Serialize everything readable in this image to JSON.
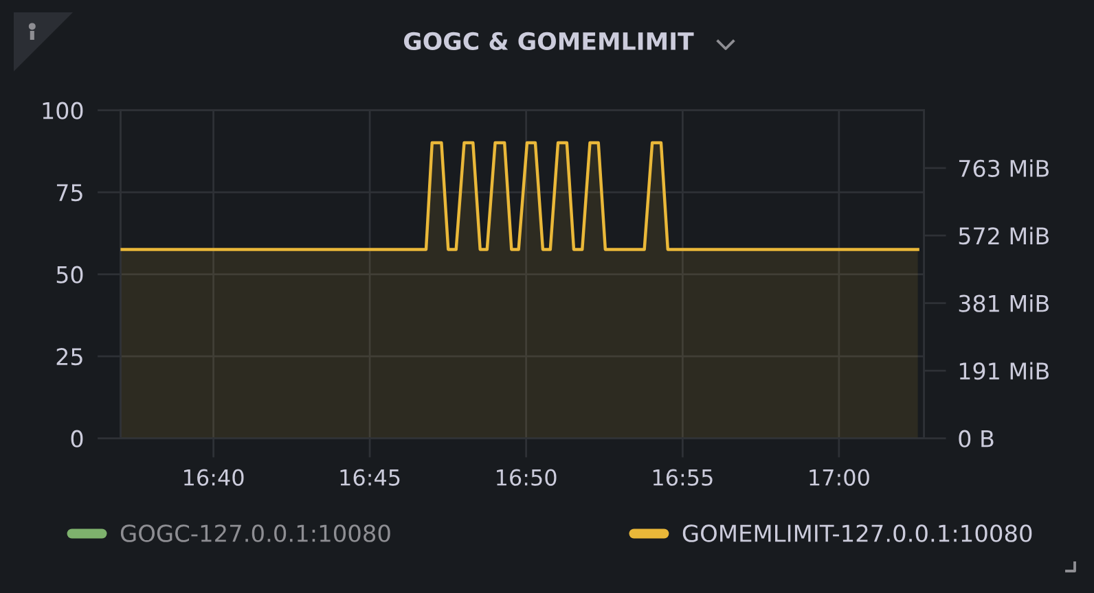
{
  "chart_data": {
    "type": "area",
    "title": "GOGC & GOMEMLIMIT",
    "xlim": [
      16.6172,
      17.0453
    ],
    "xticks": [
      {
        "value": 16.6667,
        "label": "16:40"
      },
      {
        "value": 16.75,
        "label": "16:45"
      },
      {
        "value": 16.8333,
        "label": "16:50"
      },
      {
        "value": 16.9167,
        "label": "16:55"
      },
      {
        "value": 17.0,
        "label": "17:00"
      }
    ],
    "ylim": [
      0,
      100
    ],
    "yticks": [
      0,
      25,
      50,
      75,
      100
    ],
    "y2lim": [
      0,
      926
    ],
    "y2ticks": [
      {
        "value": 0,
        "label": "0 B"
      },
      {
        "value": 190.7,
        "label": "191 MiB"
      },
      {
        "value": 381.5,
        "label": "381 MiB"
      },
      {
        "value": 572.2,
        "label": "572 MiB"
      },
      {
        "value": 762.9,
        "label": "763 MiB"
      }
    ],
    "grid": true,
    "legend": "bottom",
    "line_style": "solid",
    "series": [
      {
        "name": "GOGC-127.0.0.1:10080",
        "color": "#7eb26d"
      },
      {
        "name": "GOMEMLIMIT-127.0.0.1:10080",
        "color": "#eab839",
        "axis": "y2",
        "x": [
          16.6172,
          16.78,
          16.7832,
          16.7882,
          16.7918,
          16.796,
          16.8003,
          16.805,
          16.8088,
          16.8125,
          16.8168,
          16.8218,
          16.8255,
          16.8293,
          16.8338,
          16.8382,
          16.8422,
          16.8462,
          16.8503,
          16.855,
          16.8587,
          16.8632,
          16.8673,
          16.8718,
          16.8755,
          16.8963,
          16.9005,
          16.9052,
          16.9088,
          17.042
        ],
        "values": [
          533,
          533,
          834,
          834,
          533,
          533,
          834,
          834,
          533,
          533,
          834,
          834,
          533,
          533,
          834,
          834,
          533,
          533,
          834,
          834,
          533,
          533,
          834,
          834,
          533,
          533,
          834,
          834,
          533,
          533
        ]
      }
    ]
  }
}
